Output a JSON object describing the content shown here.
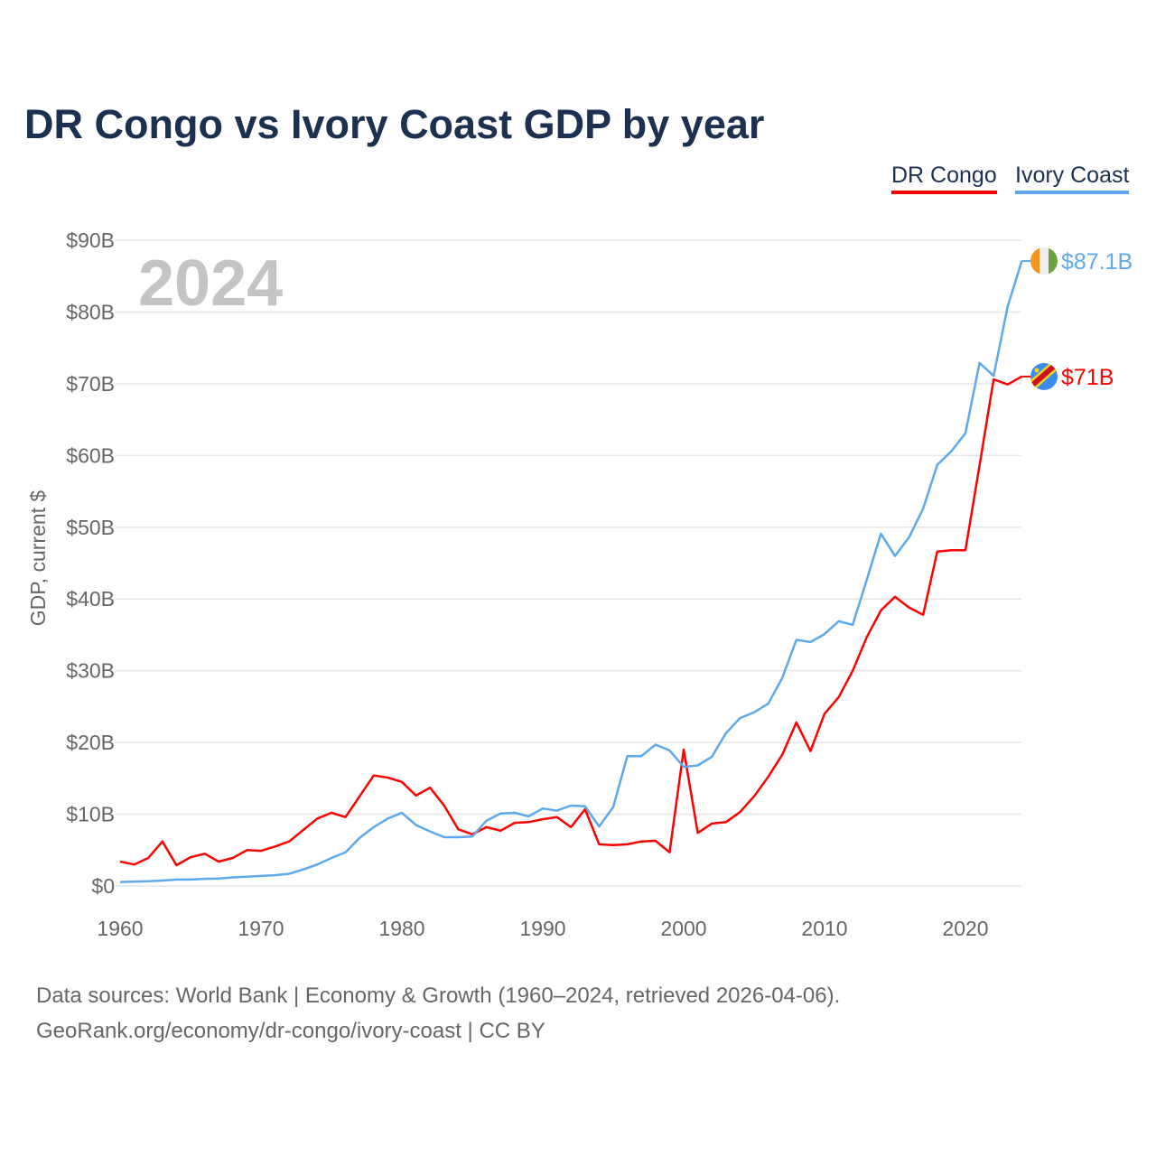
{
  "chart_data": {
    "type": "line",
    "title": "DR Congo vs Ivory Coast GDP by year",
    "ylabel": "GDP, current $",
    "xlabel": "",
    "year_watermark": "2024",
    "xlim": [
      1960,
      2024
    ],
    "ylim": [
      0,
      90
    ],
    "x_ticks": [
      1960,
      1970,
      1980,
      1990,
      2000,
      2010,
      2020
    ],
    "x_tick_labels": [
      "1960",
      "1970",
      "1980",
      "1990",
      "2000",
      "2010",
      "2020"
    ],
    "y_ticks": [
      0,
      10,
      20,
      30,
      40,
      50,
      60,
      70,
      80,
      90
    ],
    "y_tick_labels": [
      "$0",
      "$10B",
      "$20B",
      "$30B",
      "$40B",
      "$50B",
      "$60B",
      "$70B",
      "$80B",
      "$90B"
    ],
    "grid": true,
    "legend_placement": "top-right",
    "x_start": 1960,
    "series": [
      {
        "name": "DR Congo",
        "color": "#ff0000",
        "end_label": "$71B",
        "flag": "dr-congo-flag-icon",
        "values": [
          3.4,
          3.0,
          3.9,
          6.2,
          2.9,
          4.0,
          4.5,
          3.4,
          3.9,
          5.0,
          4.9,
          5.5,
          6.2,
          7.8,
          9.4,
          10.2,
          9.6,
          12.5,
          15.4,
          15.1,
          14.5,
          12.6,
          13.7,
          11.2,
          7.9,
          7.2,
          8.2,
          7.7,
          8.8,
          8.9,
          9.3,
          9.6,
          8.2,
          10.7,
          5.8,
          5.7,
          5.8,
          6.2,
          6.3,
          4.7,
          19.0,
          7.4,
          8.7,
          8.9,
          10.3,
          12.5,
          15.2,
          18.3,
          22.8,
          18.8,
          24.0,
          26.3,
          30.0,
          34.7,
          38.4,
          40.3,
          38.8,
          37.8,
          46.6,
          46.8,
          46.8,
          58.6,
          70.6,
          69.9,
          71.0
        ]
      },
      {
        "name": "Ivory Coast",
        "color": "#5ea8ec",
        "end_label": "$87.1B",
        "flag": "ivory-coast-flag-icon",
        "values": [
          0.55,
          0.6,
          0.65,
          0.75,
          0.9,
          0.9,
          1.0,
          1.05,
          1.2,
          1.3,
          1.4,
          1.5,
          1.7,
          2.3,
          3.0,
          3.9,
          4.7,
          6.7,
          8.2,
          9.4,
          10.2,
          8.5,
          7.6,
          6.8,
          6.8,
          6.9,
          9.1,
          10.1,
          10.2,
          9.7,
          10.8,
          10.5,
          11.2,
          11.1,
          8.3,
          11.0,
          18.1,
          18.1,
          19.7,
          18.9,
          16.6,
          16.8,
          18.0,
          21.3,
          23.4,
          24.2,
          25.4,
          29.0,
          34.3,
          34.0,
          35.1,
          36.9,
          36.4,
          42.7,
          49.1,
          46.0,
          48.6,
          52.6,
          58.7,
          60.6,
          63.1,
          72.9,
          71.1,
          80.8,
          87.1
        ]
      }
    ]
  },
  "footer": {
    "line1": "Data sources: World Bank | Economy & Growth (1960–2024, retrieved 2026-04-06).",
    "line2": "GeoRank.org/economy/dr-congo/ivory-coast | CC BY"
  }
}
